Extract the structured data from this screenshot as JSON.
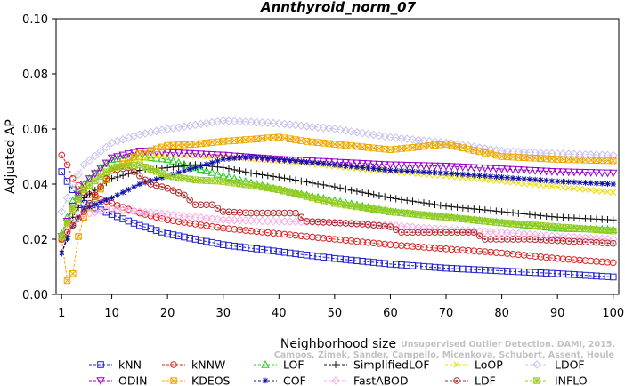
{
  "chart_data": {
    "type": "line",
    "title": "Annthyroid_norm_07",
    "xlabel": "Neighborhood size",
    "ylabel": "Adjusted AP",
    "xlim": [
      0,
      101
    ],
    "ylim": [
      0,
      0.1
    ],
    "xticks": [
      1,
      10,
      20,
      30,
      40,
      50,
      60,
      70,
      80,
      90,
      100
    ],
    "xtick_labels": [
      "1",
      "10",
      "20",
      "30",
      "40",
      "50",
      "60",
      "70",
      "80",
      "90",
      "100"
    ],
    "yticks": [
      0,
      0.02,
      0.04,
      0.06,
      0.08,
      0.1
    ],
    "ytick_labels": [
      "0.00",
      "0.02",
      "0.04",
      "0.06",
      "0.08",
      "0.10"
    ],
    "legend_position": "bottom",
    "credit_lines": [
      "Unsupervised Outlier Detection. DAMI, 2015.",
      "Campos, Zimek, Sander, Campello, Micenkova, Schubert, Assent, Houle"
    ],
    "series": [
      {
        "name": "kNN",
        "color": "#1f1fd0",
        "marker": "square",
        "points": [
          [
            1,
            0.0445
          ],
          [
            2,
            0.041
          ],
          [
            3,
            0.038
          ],
          [
            5,
            0.033
          ],
          [
            10,
            0.029
          ],
          [
            15,
            0.025
          ],
          [
            20,
            0.022
          ],
          [
            30,
            0.018
          ],
          [
            40,
            0.0155
          ],
          [
            50,
            0.013
          ],
          [
            60,
            0.011
          ],
          [
            70,
            0.0095
          ],
          [
            80,
            0.0085
          ],
          [
            90,
            0.0075
          ],
          [
            100,
            0.0063
          ]
        ]
      },
      {
        "name": "kNNW",
        "color": "#e02020",
        "marker": "circle",
        "points": [
          [
            1,
            0.0505
          ],
          [
            2,
            0.047
          ],
          [
            3,
            0.042
          ],
          [
            5,
            0.037
          ],
          [
            10,
            0.033
          ],
          [
            15,
            0.0295
          ],
          [
            20,
            0.027
          ],
          [
            30,
            0.024
          ],
          [
            40,
            0.022
          ],
          [
            50,
            0.02
          ],
          [
            60,
            0.018
          ],
          [
            70,
            0.0165
          ],
          [
            80,
            0.015
          ],
          [
            90,
            0.013
          ],
          [
            100,
            0.0115
          ]
        ]
      },
      {
        "name": "LOF",
        "color": "#22cc22",
        "marker": "triangle-up",
        "points": [
          [
            1,
            0.022
          ],
          [
            2,
            0.028
          ],
          [
            3,
            0.034
          ],
          [
            5,
            0.04
          ],
          [
            8,
            0.046
          ],
          [
            10,
            0.049
          ],
          [
            15,
            0.05
          ],
          [
            20,
            0.049
          ],
          [
            25,
            0.046
          ],
          [
            30,
            0.043
          ],
          [
            40,
            0.038
          ],
          [
            50,
            0.034
          ],
          [
            60,
            0.03
          ],
          [
            70,
            0.028
          ],
          [
            80,
            0.026
          ],
          [
            90,
            0.024
          ],
          [
            100,
            0.0235
          ]
        ]
      },
      {
        "name": "SimplifiedLOF",
        "color": "#111111",
        "marker": "plus",
        "points": [
          [
            1,
            0.015
          ],
          [
            2,
            0.021
          ],
          [
            3,
            0.028
          ],
          [
            5,
            0.035
          ],
          [
            10,
            0.042
          ],
          [
            15,
            0.045
          ],
          [
            20,
            0.046
          ],
          [
            25,
            0.047
          ],
          [
            30,
            0.046
          ],
          [
            35,
            0.044
          ],
          [
            40,
            0.0425
          ],
          [
            50,
            0.039
          ],
          [
            60,
            0.035
          ],
          [
            70,
            0.032
          ],
          [
            80,
            0.03
          ],
          [
            90,
            0.028
          ],
          [
            100,
            0.027
          ]
        ]
      },
      {
        "name": "LoOP",
        "color": "#eedd00",
        "marker": "x",
        "points": [
          [
            1,
            0.02
          ],
          [
            3,
            0.03
          ],
          [
            5,
            0.038
          ],
          [
            10,
            0.046
          ],
          [
            15,
            0.049
          ],
          [
            20,
            0.0505
          ],
          [
            30,
            0.05
          ],
          [
            40,
            0.0485
          ],
          [
            50,
            0.0465
          ],
          [
            60,
            0.0445
          ],
          [
            70,
            0.043
          ],
          [
            80,
            0.041
          ],
          [
            90,
            0.039
          ],
          [
            100,
            0.037
          ]
        ]
      },
      {
        "name": "LDOF",
        "color": "#c8c0ee",
        "marker": "diamond",
        "points": [
          [
            1,
            0.03
          ],
          [
            3,
            0.04
          ],
          [
            5,
            0.047
          ],
          [
            10,
            0.055
          ],
          [
            15,
            0.058
          ],
          [
            20,
            0.06
          ],
          [
            25,
            0.0615
          ],
          [
            30,
            0.063
          ],
          [
            35,
            0.0625
          ],
          [
            40,
            0.062
          ],
          [
            50,
            0.06
          ],
          [
            60,
            0.057
          ],
          [
            70,
            0.055
          ],
          [
            80,
            0.052
          ],
          [
            90,
            0.051
          ],
          [
            100,
            0.0505
          ]
        ]
      },
      {
        "name": "ODIN",
        "color": "#9900cc",
        "marker": "triangle-down",
        "points": [
          [
            1,
            0.021
          ],
          [
            3,
            0.032
          ],
          [
            5,
            0.04
          ],
          [
            10,
            0.0495
          ],
          [
            15,
            0.052
          ],
          [
            20,
            0.0515
          ],
          [
            30,
            0.0505
          ],
          [
            40,
            0.049
          ],
          [
            50,
            0.048
          ],
          [
            60,
            0.047
          ],
          [
            70,
            0.0465
          ],
          [
            80,
            0.0455
          ],
          [
            90,
            0.0445
          ],
          [
            100,
            0.044
          ]
        ]
      },
      {
        "name": "KDEOS",
        "color": "#f0a800",
        "marker": "x-square",
        "points": [
          [
            1,
            0.02
          ],
          [
            2,
            0.005
          ],
          [
            3,
            0.0075
          ],
          [
            4,
            0.021
          ],
          [
            5,
            0.028
          ],
          [
            10,
            0.045
          ],
          [
            15,
            0.051
          ],
          [
            20,
            0.054
          ],
          [
            25,
            0.0545
          ],
          [
            30,
            0.0555
          ],
          [
            40,
            0.057
          ],
          [
            45,
            0.0555
          ],
          [
            50,
            0.0545
          ],
          [
            60,
            0.0525
          ],
          [
            70,
            0.0545
          ],
          [
            80,
            0.05
          ],
          [
            90,
            0.049
          ],
          [
            100,
            0.0485
          ]
        ]
      },
      {
        "name": "COF",
        "color": "#1010aa",
        "marker": "star",
        "points": [
          [
            1,
            0.015
          ],
          [
            3,
            0.025
          ],
          [
            5,
            0.031
          ],
          [
            10,
            0.035
          ],
          [
            15,
            0.04
          ],
          [
            20,
            0.043
          ],
          [
            25,
            0.046
          ],
          [
            30,
            0.049
          ],
          [
            35,
            0.05
          ],
          [
            40,
            0.049
          ],
          [
            50,
            0.047
          ],
          [
            60,
            0.045
          ],
          [
            70,
            0.044
          ],
          [
            80,
            0.0425
          ],
          [
            90,
            0.041
          ],
          [
            100,
            0.04
          ]
        ]
      },
      {
        "name": "FastABOD",
        "color": "#f6b0e6",
        "marker": "diamond",
        "points": [
          [
            1,
            0.02
          ],
          [
            3,
            0.026
          ],
          [
            5,
            0.029
          ],
          [
            10,
            0.031
          ],
          [
            20,
            0.029
          ],
          [
            30,
            0.027
          ],
          [
            40,
            0.0265
          ],
          [
            50,
            0.026
          ],
          [
            60,
            0.025
          ],
          [
            70,
            0.0235
          ],
          [
            80,
            0.0225
          ],
          [
            90,
            0.021
          ],
          [
            100,
            0.02
          ]
        ]
      },
      {
        "name": "LDF",
        "color": "#b52a2a",
        "marker": "circle-dot",
        "points": [
          [
            1,
            0.02
          ],
          [
            5,
            0.03
          ],
          [
            10,
            0.045
          ],
          [
            13,
            0.046
          ],
          [
            15,
            0.043
          ],
          [
            17,
            0.04
          ],
          [
            20,
            0.0385
          ],
          [
            23,
            0.036
          ],
          [
            25,
            0.0325
          ],
          [
            28,
            0.0325
          ],
          [
            30,
            0.03
          ],
          [
            35,
            0.0295
          ],
          [
            40,
            0.0295
          ],
          [
            43,
            0.0295
          ],
          [
            45,
            0.0265
          ],
          [
            55,
            0.0255
          ],
          [
            60,
            0.0245
          ],
          [
            62,
            0.0225
          ],
          [
            75,
            0.0225
          ],
          [
            77,
            0.02
          ],
          [
            85,
            0.02
          ],
          [
            90,
            0.0195
          ],
          [
            100,
            0.0185
          ]
        ]
      },
      {
        "name": "INFLO",
        "color": "#99cc22",
        "marker": "asterisk-square",
        "points": [
          [
            1,
            0.021
          ],
          [
            3,
            0.031
          ],
          [
            5,
            0.038
          ],
          [
            10,
            0.046
          ],
          [
            15,
            0.047
          ],
          [
            20,
            0.043
          ],
          [
            25,
            0.0415
          ],
          [
            30,
            0.041
          ],
          [
            40,
            0.038
          ],
          [
            50,
            0.033
          ],
          [
            60,
            0.03
          ],
          [
            70,
            0.028
          ],
          [
            80,
            0.026
          ],
          [
            90,
            0.0245
          ],
          [
            100,
            0.023
          ]
        ]
      }
    ]
  }
}
